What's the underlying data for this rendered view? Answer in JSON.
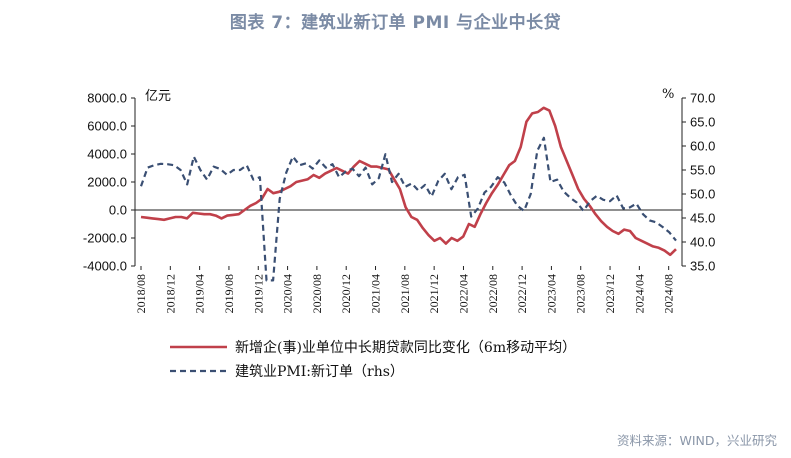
{
  "title": "图表 7：建筑业新订单 PMI 与企业中长贷",
  "source": "资料来源：WIND，兴业研究",
  "chart_data": {
    "type": "line",
    "left_axis": {
      "unit": "亿元",
      "min": -4000,
      "max": 8000,
      "step": 2000,
      "ticks": [
        "8000.0",
        "6000.0",
        "4000.0",
        "2000.0",
        "0.0",
        "-2000.0",
        "-4000.0"
      ]
    },
    "right_axis": {
      "unit": "%",
      "min": 35,
      "max": 70,
      "step": 5,
      "ticks": [
        "70.0",
        "65.0",
        "60.0",
        "55.0",
        "50.0",
        "45.0",
        "40.0",
        "35.0"
      ]
    },
    "x_ticks": [
      "2018/08",
      "2018/12",
      "2019/04",
      "2019/08",
      "2019/12",
      "2020/04",
      "2020/08",
      "2020/12",
      "2021/04",
      "2021/08",
      "2021/12",
      "2022/04",
      "2022/08",
      "2022/12",
      "2023/04",
      "2023/08",
      "2023/12",
      "2024/04",
      "2024/08"
    ],
    "grid": false,
    "legend_placement": "bottom",
    "series": [
      {
        "name": "新增企(事)业单位中长期贷款同比变化（6m移动平均）",
        "axis": "left",
        "style": "solid",
        "color": "#c0404a",
        "values": [
          -500,
          -550,
          -600,
          -650,
          -700,
          -600,
          -500,
          -500,
          -600,
          -200,
          -250,
          -300,
          -300,
          -400,
          -600,
          -400,
          -350,
          -300,
          0,
          300,
          500,
          800,
          1500,
          1200,
          1300,
          1500,
          1700,
          2000,
          2100,
          2200,
          2500,
          2300,
          2600,
          2800,
          3000,
          2800,
          2600,
          3100,
          3500,
          3300,
          3100,
          3100,
          3000,
          2900,
          2200,
          1500,
          200,
          -500,
          -700,
          -1300,
          -1800,
          -2200,
          -2000,
          -2400,
          -2000,
          -2200,
          -1900,
          -1000,
          -1200,
          -300,
          500,
          1200,
          1800,
          2500,
          3200,
          3500,
          4500,
          6300,
          6900,
          7000,
          7300,
          7100,
          6000,
          4500,
          3500,
          2500,
          1500,
          800,
          300,
          -300,
          -800,
          -1200,
          -1500,
          -1700,
          -1400,
          -1500,
          -2000,
          -2200,
          -2400,
          -2600,
          -2700,
          -2900,
          -3200,
          -2800
        ]
      },
      {
        "name": "建筑业PMI:新订单（rhs）",
        "axis": "right",
        "style": "dashed",
        "color": "#3a4f73",
        "values": [
          51.6,
          55.5,
          56.0,
          56.3,
          56.2,
          56.0,
          55.0,
          52.0,
          57.8,
          55.0,
          53.0,
          55.7,
          55.2,
          54.0,
          55.0,
          55.0,
          56.0,
          53.0,
          53.5,
          32.0,
          32.0,
          49.0,
          54.5,
          57.8,
          56.0,
          56.4,
          55.3,
          57.0,
          55.5,
          56.2,
          53.5,
          54.7,
          55.3,
          53.7,
          55.5,
          52.0,
          53.3,
          58.3,
          52.5,
          54.2,
          51.5,
          52.2,
          50.7,
          51.9,
          49.5,
          52.7,
          54.2,
          51.0,
          53.5,
          54.0,
          45.3,
          47.0,
          50.3,
          51.5,
          53.5,
          52.4,
          49.7,
          47.5,
          46.5,
          50.0,
          59.0,
          61.7,
          52.5,
          53.0,
          50.5,
          49.2,
          48.2,
          46.5,
          48.5,
          49.6,
          48.8,
          48.5,
          49.7,
          47.0,
          47.2,
          48.0,
          45.8,
          44.5,
          44.1,
          43.1,
          42.0,
          40.3
        ]
      }
    ]
  }
}
